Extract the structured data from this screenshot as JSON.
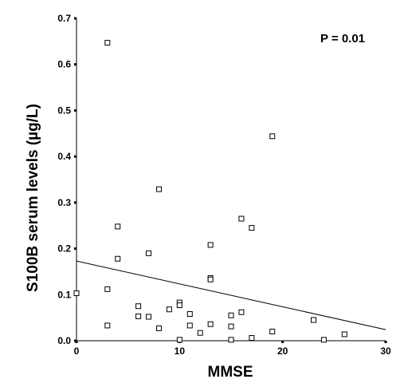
{
  "chart_data": {
    "type": "scatter",
    "title": "",
    "xlabel": "MMSE",
    "ylabel": "S100B serum levels (µg/L)",
    "annotation": "P = 0.01",
    "xlim": [
      0,
      30
    ],
    "ylim": [
      0,
      0.7
    ],
    "x_ticks": [
      0,
      10,
      20,
      30
    ],
    "y_ticks": [
      0.0,
      0.1,
      0.2,
      0.3,
      0.4,
      0.5,
      0.6,
      0.7
    ],
    "y_tick_labels": [
      "0.0",
      "0.1",
      "0.2",
      "0.3",
      "0.4",
      "0.5",
      "0.6",
      "0.7"
    ],
    "marker": "open-square",
    "grid": false,
    "points": [
      {
        "x": 0,
        "y": 0.103
      },
      {
        "x": 3,
        "y": 0.647
      },
      {
        "x": 3,
        "y": 0.112
      },
      {
        "x": 3,
        "y": 0.033
      },
      {
        "x": 4,
        "y": 0.248
      },
      {
        "x": 4,
        "y": 0.178
      },
      {
        "x": 6,
        "y": 0.075
      },
      {
        "x": 6,
        "y": 0.053
      },
      {
        "x": 7,
        "y": 0.19
      },
      {
        "x": 7,
        "y": 0.052
      },
      {
        "x": 8,
        "y": 0.329
      },
      {
        "x": 8,
        "y": 0.027
      },
      {
        "x": 9,
        "y": 0.068
      },
      {
        "x": 10,
        "y": 0.083
      },
      {
        "x": 10,
        "y": 0.077
      },
      {
        "x": 10,
        "y": 0.002
      },
      {
        "x": 11,
        "y": 0.058
      },
      {
        "x": 11,
        "y": 0.033
      },
      {
        "x": 12,
        "y": 0.017
      },
      {
        "x": 13,
        "y": 0.208
      },
      {
        "x": 13,
        "y": 0.136
      },
      {
        "x": 13,
        "y": 0.133
      },
      {
        "x": 13,
        "y": 0.036
      },
      {
        "x": 15,
        "y": 0.055
      },
      {
        "x": 15,
        "y": 0.031
      },
      {
        "x": 15,
        "y": 0.002
      },
      {
        "x": 16,
        "y": 0.265
      },
      {
        "x": 16,
        "y": 0.062
      },
      {
        "x": 17,
        "y": 0.245
      },
      {
        "x": 17,
        "y": 0.006
      },
      {
        "x": 19,
        "y": 0.444
      },
      {
        "x": 19,
        "y": 0.02
      },
      {
        "x": 23,
        "y": 0.045
      },
      {
        "x": 24,
        "y": 0.002
      },
      {
        "x": 26,
        "y": 0.014
      }
    ],
    "regression_line": {
      "x": [
        0,
        30
      ],
      "y": [
        0.173,
        0.024
      ]
    }
  }
}
